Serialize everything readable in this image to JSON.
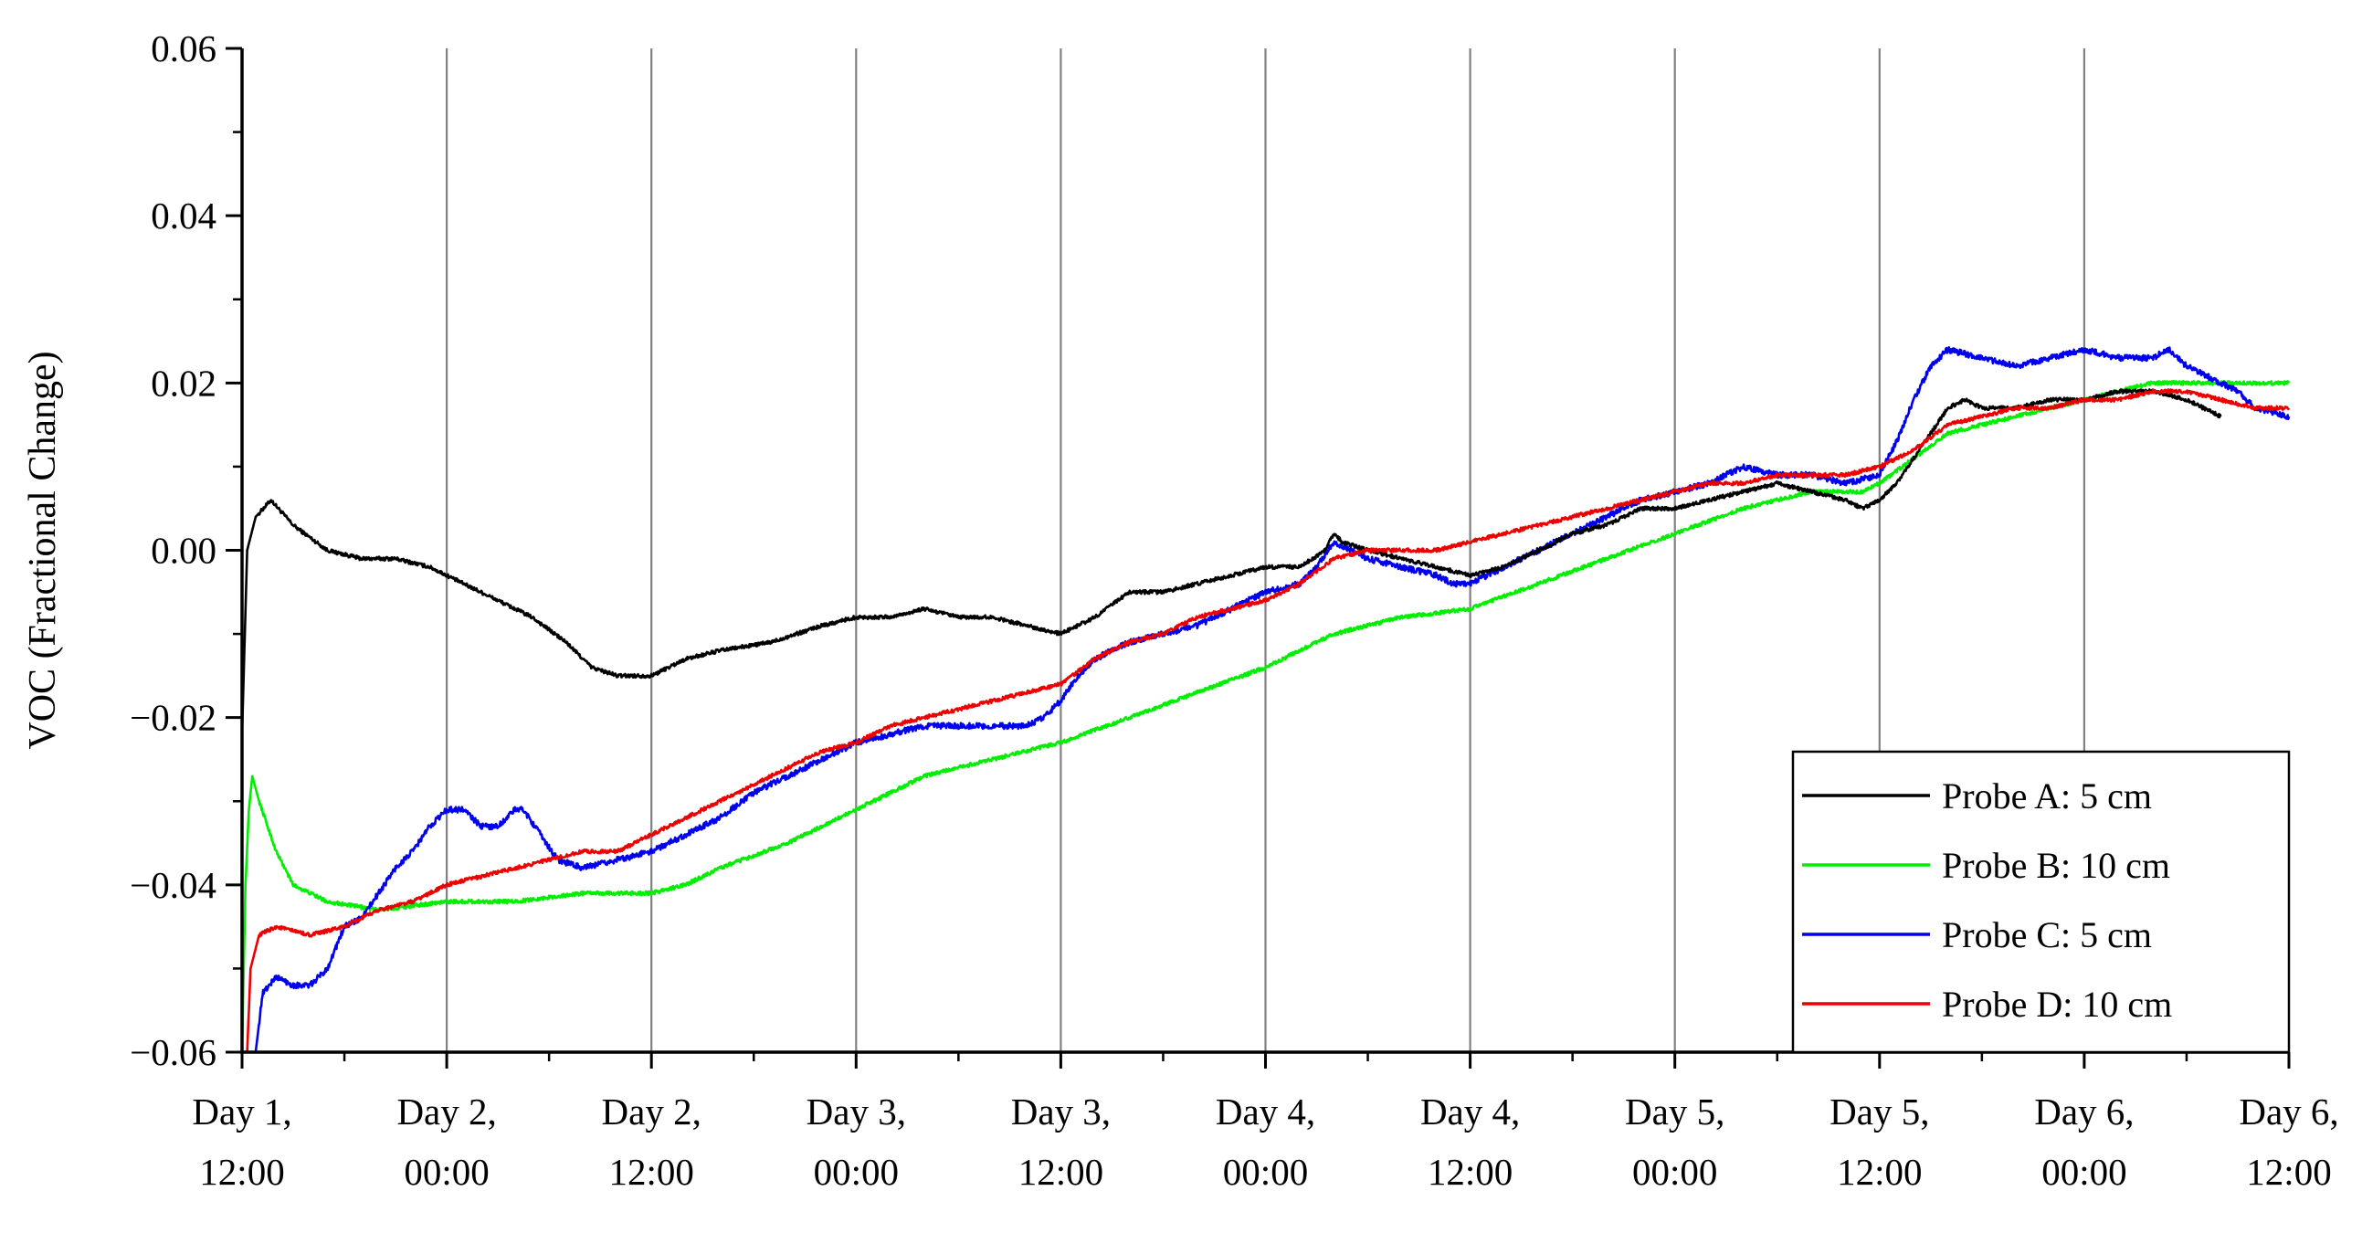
{
  "chart_data": {
    "type": "line",
    "title": "",
    "xlabel": "",
    "ylabel": "VOC (Fractional Change)",
    "ylim": [
      -0.06,
      0.06
    ],
    "xlim": [
      0,
      120
    ],
    "x_unit": "hours from Day 1, 12:00",
    "grid": "vertical lines every 12 hours",
    "y_ticks": [
      {
        "value": -0.06,
        "label": "−0.06"
      },
      {
        "value": -0.04,
        "label": "−0.04"
      },
      {
        "value": -0.02,
        "label": "−0.02"
      },
      {
        "value": 0.0,
        "label": "0.00"
      },
      {
        "value": 0.02,
        "label": "0.02"
      },
      {
        "value": 0.04,
        "label": "0.04"
      },
      {
        "value": 0.06,
        "label": "0.06"
      }
    ],
    "x_ticks": [
      {
        "value": 0,
        "line1": "Day 1,",
        "line2": "12:00"
      },
      {
        "value": 12,
        "line1": "Day 2,",
        "line2": "00:00"
      },
      {
        "value": 24,
        "line1": "Day 2,",
        "line2": "12:00"
      },
      {
        "value": 36,
        "line1": "Day 3,",
        "line2": "00:00"
      },
      {
        "value": 48,
        "line1": "Day 3,",
        "line2": "12:00"
      },
      {
        "value": 60,
        "line1": "Day 4,",
        "line2": "00:00"
      },
      {
        "value": 72,
        "line1": "Day 4,",
        "line2": "12:00"
      },
      {
        "value": 84,
        "line1": "Day 5,",
        "line2": "00:00"
      },
      {
        "value": 96,
        "line1": "Day 5,",
        "line2": "12:00"
      },
      {
        "value": 108,
        "line1": "Day 6,",
        "line2": "00:00"
      },
      {
        "value": 120,
        "line1": "Day 6,",
        "line2": "12:00"
      }
    ],
    "legend_position": "bottom-right",
    "series": [
      {
        "name": "Probe A: 5 cm",
        "color": "#000000",
        "points": [
          [
            0,
            -0.022
          ],
          [
            0.3,
            0.0
          ],
          [
            0.8,
            0.004
          ],
          [
            1.7,
            0.006
          ],
          [
            3,
            0.003
          ],
          [
            5,
            0.0
          ],
          [
            7,
            -0.001
          ],
          [
            9,
            -0.001
          ],
          [
            11,
            -0.002
          ],
          [
            13,
            -0.004
          ],
          [
            15,
            -0.006
          ],
          [
            17,
            -0.008
          ],
          [
            19,
            -0.011
          ],
          [
            20.5,
            -0.014
          ],
          [
            22,
            -0.015
          ],
          [
            24,
            -0.015
          ],
          [
            26,
            -0.013
          ],
          [
            28,
            -0.012
          ],
          [
            31,
            -0.011
          ],
          [
            34,
            -0.009
          ],
          [
            36,
            -0.008
          ],
          [
            38,
            -0.008
          ],
          [
            40,
            -0.007
          ],
          [
            42,
            -0.008
          ],
          [
            44,
            -0.008
          ],
          [
            46,
            -0.009
          ],
          [
            48,
            -0.01
          ],
          [
            50,
            -0.008
          ],
          [
            52,
            -0.005
          ],
          [
            54,
            -0.005
          ],
          [
            56,
            -0.004
          ],
          [
            58,
            -0.003
          ],
          [
            60,
            -0.002
          ],
          [
            62,
            -0.002
          ],
          [
            63.5,
            0.0
          ],
          [
            64,
            0.002
          ],
          [
            64.5,
            0.001
          ],
          [
            66,
            0.0
          ],
          [
            68,
            -0.001
          ],
          [
            70,
            -0.002
          ],
          [
            72,
            -0.003
          ],
          [
            74,
            -0.002
          ],
          [
            76,
            0.0
          ],
          [
            78,
            0.002
          ],
          [
            80,
            0.003
          ],
          [
            82,
            0.005
          ],
          [
            84,
            0.005
          ],
          [
            86,
            0.006
          ],
          [
            88,
            0.007
          ],
          [
            90,
            0.008
          ],
          [
            92,
            0.007
          ],
          [
            94,
            0.006
          ],
          [
            95,
            0.005
          ],
          [
            96,
            0.006
          ],
          [
            97,
            0.008
          ],
          [
            98,
            0.011
          ],
          [
            99,
            0.014
          ],
          [
            100,
            0.017
          ],
          [
            101,
            0.018
          ],
          [
            102,
            0.017
          ],
          [
            104,
            0.017
          ],
          [
            106,
            0.018
          ],
          [
            108,
            0.018
          ],
          [
            110,
            0.019
          ],
          [
            112,
            0.019
          ],
          [
            114,
            0.018
          ],
          [
            115,
            0.017
          ],
          [
            116,
            0.016
          ]
        ]
      },
      {
        "name": "Probe B: 10 cm",
        "color": "#00ee00",
        "points": [
          [
            0,
            -0.06
          ],
          [
            0.2,
            -0.04
          ],
          [
            0.4,
            -0.031
          ],
          [
            0.6,
            -0.027
          ],
          [
            1,
            -0.03
          ],
          [
            2,
            -0.036
          ],
          [
            3,
            -0.04
          ],
          [
            5,
            -0.042
          ],
          [
            8,
            -0.043
          ],
          [
            12,
            -0.042
          ],
          [
            16,
            -0.042
          ],
          [
            20,
            -0.041
          ],
          [
            24,
            -0.041
          ],
          [
            26,
            -0.04
          ],
          [
            28,
            -0.038
          ],
          [
            32,
            -0.035
          ],
          [
            36,
            -0.031
          ],
          [
            40,
            -0.027
          ],
          [
            44,
            -0.025
          ],
          [
            48,
            -0.023
          ],
          [
            52,
            -0.02
          ],
          [
            56,
            -0.017
          ],
          [
            60,
            -0.014
          ],
          [
            64,
            -0.01
          ],
          [
            68,
            -0.008
          ],
          [
            72,
            -0.007
          ],
          [
            76,
            -0.004
          ],
          [
            80,
            -0.001
          ],
          [
            84,
            0.002
          ],
          [
            88,
            0.005
          ],
          [
            92,
            0.007
          ],
          [
            95,
            0.007
          ],
          [
            96,
            0.008
          ],
          [
            98,
            0.011
          ],
          [
            100,
            0.014
          ],
          [
            104,
            0.016
          ],
          [
            108,
            0.018
          ],
          [
            110,
            0.019
          ],
          [
            112,
            0.02
          ],
          [
            114,
            0.02
          ],
          [
            116,
            0.02
          ],
          [
            118,
            0.02
          ],
          [
            120,
            0.02
          ]
        ]
      },
      {
        "name": "Probe C: 5 cm",
        "color": "#0000ee",
        "points": [
          [
            0.8,
            -0.06
          ],
          [
            1.2,
            -0.053
          ],
          [
            2,
            -0.051
          ],
          [
            3,
            -0.052
          ],
          [
            4,
            -0.052
          ],
          [
            5,
            -0.05
          ],
          [
            6,
            -0.045
          ],
          [
            7,
            -0.044
          ],
          [
            8,
            -0.041
          ],
          [
            9,
            -0.038
          ],
          [
            10,
            -0.036
          ],
          [
            11,
            -0.033
          ],
          [
            12,
            -0.031
          ],
          [
            13,
            -0.031
          ],
          [
            14,
            -0.033
          ],
          [
            15,
            -0.033
          ],
          [
            16,
            -0.031
          ],
          [
            16.5,
            -0.031
          ],
          [
            17.5,
            -0.034
          ],
          [
            18.5,
            -0.037
          ],
          [
            20,
            -0.038
          ],
          [
            22,
            -0.037
          ],
          [
            24,
            -0.036
          ],
          [
            26,
            -0.034
          ],
          [
            28,
            -0.032
          ],
          [
            30,
            -0.029
          ],
          [
            32,
            -0.027
          ],
          [
            34,
            -0.025
          ],
          [
            36,
            -0.023
          ],
          [
            38,
            -0.022
          ],
          [
            40,
            -0.021
          ],
          [
            42,
            -0.021
          ],
          [
            44,
            -0.021
          ],
          [
            46,
            -0.021
          ],
          [
            47,
            -0.02
          ],
          [
            48,
            -0.018
          ],
          [
            49,
            -0.015
          ],
          [
            50,
            -0.013
          ],
          [
            52,
            -0.011
          ],
          [
            54,
            -0.01
          ],
          [
            56,
            -0.009
          ],
          [
            58,
            -0.007
          ],
          [
            60,
            -0.005
          ],
          [
            62,
            -0.004
          ],
          [
            63,
            -0.002
          ],
          [
            64,
            0.001
          ],
          [
            65,
            0.0
          ],
          [
            66,
            -0.001
          ],
          [
            68,
            -0.002
          ],
          [
            70,
            -0.003
          ],
          [
            71,
            -0.004
          ],
          [
            72,
            -0.004
          ],
          [
            74,
            -0.002
          ],
          [
            76,
            0.0
          ],
          [
            78,
            0.002
          ],
          [
            80,
            0.004
          ],
          [
            82,
            0.006
          ],
          [
            84,
            0.007
          ],
          [
            86,
            0.008
          ],
          [
            88,
            0.01
          ],
          [
            90,
            0.009
          ],
          [
            92,
            0.009
          ],
          [
            94,
            0.008
          ],
          [
            96,
            0.009
          ],
          [
            97,
            0.013
          ],
          [
            98,
            0.018
          ],
          [
            99,
            0.022
          ],
          [
            100,
            0.024
          ],
          [
            102,
            0.023
          ],
          [
            104,
            0.022
          ],
          [
            106,
            0.023
          ],
          [
            108,
            0.024
          ],
          [
            110,
            0.023
          ],
          [
            112,
            0.023
          ],
          [
            113,
            0.024
          ],
          [
            114,
            0.022
          ],
          [
            116,
            0.02
          ],
          [
            117,
            0.019
          ],
          [
            118,
            0.017
          ],
          [
            120,
            0.016
          ]
        ]
      },
      {
        "name": "Probe D: 10 cm",
        "color": "#ee0000",
        "points": [
          [
            0.3,
            -0.06
          ],
          [
            0.5,
            -0.05
          ],
          [
            1,
            -0.046
          ],
          [
            2,
            -0.045
          ],
          [
            4,
            -0.046
          ],
          [
            6,
            -0.045
          ],
          [
            8,
            -0.043
          ],
          [
            10,
            -0.042
          ],
          [
            12,
            -0.04
          ],
          [
            14,
            -0.039
          ],
          [
            16,
            -0.038
          ],
          [
            18,
            -0.037
          ],
          [
            20,
            -0.036
          ],
          [
            22,
            -0.036
          ],
          [
            24,
            -0.034
          ],
          [
            26,
            -0.032
          ],
          [
            28,
            -0.03
          ],
          [
            30,
            -0.028
          ],
          [
            32,
            -0.026
          ],
          [
            34,
            -0.024
          ],
          [
            36,
            -0.023
          ],
          [
            38,
            -0.021
          ],
          [
            40,
            -0.02
          ],
          [
            42,
            -0.019
          ],
          [
            44,
            -0.018
          ],
          [
            46,
            -0.017
          ],
          [
            48,
            -0.016
          ],
          [
            50,
            -0.013
          ],
          [
            52,
            -0.011
          ],
          [
            54,
            -0.01
          ],
          [
            56,
            -0.008
          ],
          [
            58,
            -0.007
          ],
          [
            60,
            -0.006
          ],
          [
            62,
            -0.004
          ],
          [
            64,
            -0.001
          ],
          [
            66,
            0.0
          ],
          [
            68,
            0.0
          ],
          [
            70,
            0.0
          ],
          [
            72,
            0.001
          ],
          [
            74,
            0.002
          ],
          [
            76,
            0.003
          ],
          [
            78,
            0.004
          ],
          [
            80,
            0.005
          ],
          [
            82,
            0.006
          ],
          [
            84,
            0.007
          ],
          [
            86,
            0.008
          ],
          [
            88,
            0.008
          ],
          [
            90,
            0.009
          ],
          [
            92,
            0.009
          ],
          [
            94,
            0.009
          ],
          [
            96,
            0.01
          ],
          [
            98,
            0.012
          ],
          [
            100,
            0.015
          ],
          [
            102,
            0.016
          ],
          [
            104,
            0.017
          ],
          [
            106,
            0.017
          ],
          [
            108,
            0.018
          ],
          [
            110,
            0.018
          ],
          [
            112,
            0.019
          ],
          [
            114,
            0.019
          ],
          [
            116,
            0.018
          ],
          [
            118,
            0.017
          ],
          [
            120,
            0.017
          ]
        ]
      }
    ]
  }
}
